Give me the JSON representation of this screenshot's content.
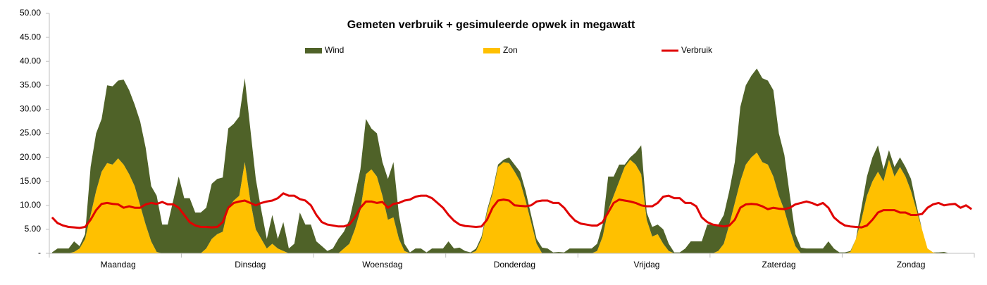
{
  "chart_data": {
    "type": "stacked-area-line",
    "title": "Gemeten verbruik + gesimuleerde opwek in megawatt",
    "categories": [
      null,
      null,
      null,
      null,
      null,
      null,
      null,
      null,
      null,
      null,
      null,
      null,
      "Maandag",
      null,
      null,
      null,
      null,
      null,
      null,
      null,
      null,
      null,
      null,
      null,
      null,
      null,
      null,
      null,
      null,
      null,
      null,
      null,
      null,
      null,
      null,
      null,
      "Dinsdag",
      null,
      null,
      null,
      null,
      null,
      null,
      null,
      null,
      null,
      null,
      null,
      null,
      null,
      null,
      null,
      null,
      null,
      null,
      null,
      null,
      null,
      null,
      null,
      "Woensdag",
      null,
      null,
      null,
      null,
      null,
      null,
      null,
      null,
      null,
      null,
      null,
      null,
      null,
      null,
      null,
      null,
      null,
      null,
      null,
      null,
      null,
      null,
      null,
      "Donderdag",
      null,
      null,
      null,
      null,
      null,
      null,
      null,
      null,
      null,
      null,
      null,
      null,
      null,
      null,
      null,
      null,
      null,
      null,
      null,
      null,
      null,
      null,
      null,
      "Vrijdag",
      null,
      null,
      null,
      null,
      null,
      null,
      null,
      null,
      null,
      null,
      null,
      null,
      null,
      null,
      null,
      null,
      null,
      null,
      null,
      null,
      null,
      null,
      null,
      "Zaterdag",
      null,
      null,
      null,
      null,
      null,
      null,
      null,
      null,
      null,
      null,
      null,
      null,
      null,
      null,
      null,
      null,
      null,
      null,
      null,
      null,
      null,
      null,
      null,
      "Zondag",
      null,
      null,
      null,
      null,
      null,
      null,
      null,
      null,
      null,
      null,
      null
    ],
    "series": [
      {
        "name": "Wind",
        "color": "#4f6228",
        "stack": true,
        "values": [
          0.2,
          1,
          1,
          1,
          2.2,
          0.5,
          1,
          10,
          12,
          11,
          16.2,
          16.3,
          16.2,
          17.7,
          17.5,
          17,
          17.5,
          16,
          11.5,
          11.7,
          6,
          6,
          11,
          16,
          11.5,
          11.5,
          8.5,
          8.5,
          8.5,
          11.5,
          11.5,
          11.3,
          16.5,
          16,
          16.5,
          17.5,
          15,
          10.5,
          6,
          2,
          6,
          2,
          6,
          1,
          2,
          8.5,
          6,
          6,
          2.5,
          1.5,
          0.5,
          1,
          3,
          3.5,
          5,
          7,
          8.5,
          11.5,
          8.5,
          9,
          7,
          8.5,
          11.5,
          5,
          1.5,
          0.2,
          1,
          1,
          0.2,
          1,
          1,
          1,
          2.5,
          1,
          1.2,
          0.5,
          0.2,
          0.5,
          0.5,
          0.5,
          0.5,
          0.5,
          0.5,
          1.2,
          1.5,
          2,
          2,
          1.5,
          1,
          1.2,
          1,
          0.2,
          0.3,
          0.2,
          1,
          1,
          1,
          1,
          1,
          1.5,
          2.5,
          7,
          4,
          3.5,
          0.5,
          0.5,
          2.5,
          6,
          1.5,
          2,
          2,
          3,
          1.5,
          0.2,
          0.2,
          1,
          2.5,
          2.5,
          2.5,
          6,
          6,
          5.5,
          6,
          7,
          8.5,
          15.5,
          16.5,
          17,
          17.5,
          17.5,
          17.5,
          18,
          13,
          11.5,
          7,
          2.5,
          1.2,
          1,
          1,
          1,
          1,
          2.5,
          1,
          0.2,
          0.2,
          0.2,
          0,
          2.5,
          4,
          5,
          5.5,
          2.5,
          2,
          2,
          2,
          2,
          2.5,
          1,
          0,
          0,
          0,
          0.2,
          0.3,
          0,
          0,
          0,
          0,
          0
        ]
      },
      {
        "name": "Zon",
        "color": "#ffc000",
        "stack": true,
        "values": [
          0,
          0,
          0,
          0,
          0.3,
          1,
          3,
          8,
          13,
          17,
          18.8,
          18.5,
          19.8,
          18.5,
          16.5,
          14,
          10,
          6,
          2.5,
          0.3,
          0,
          0,
          0,
          0,
          0,
          0,
          0,
          0,
          1,
          3,
          4,
          4.5,
          9.5,
          11,
          12,
          19,
          11,
          5,
          3,
          1,
          2,
          1,
          0.5,
          0,
          0,
          0,
          0,
          0,
          0,
          0,
          0,
          0,
          0,
          1,
          2,
          5,
          9,
          16.5,
          17.5,
          16,
          12,
          7,
          7.5,
          3,
          0.5,
          0,
          0,
          0,
          0,
          0,
          0,
          0,
          0,
          0,
          0,
          0,
          0,
          0.5,
          3,
          8.5,
          12.5,
          18,
          19,
          18.8,
          17,
          15,
          11,
          6.5,
          2,
          0,
          0,
          0,
          0,
          0,
          0,
          0,
          0,
          0,
          0,
          0.5,
          3.5,
          9,
          12,
          15,
          18,
          19.5,
          18.5,
          16.5,
          7,
          3.5,
          4,
          2,
          0.5,
          0,
          0,
          0,
          0,
          0,
          0,
          0,
          0,
          0.5,
          2,
          6,
          10.5,
          15,
          18.5,
          20,
          21,
          19,
          18.5,
          16,
          12,
          9,
          5,
          1.5,
          0,
          0,
          0,
          0,
          0,
          0,
          0,
          0,
          0,
          0.3,
          3,
          7,
          12,
          15,
          17,
          15,
          19.5,
          16,
          18,
          16,
          13,
          9,
          5,
          1,
          0.2,
          0,
          0,
          0,
          0,
          0,
          0,
          0
        ]
      },
      {
        "name": "Verbruik",
        "color": "#e00000",
        "stack": false,
        "values": [
          7.5,
          6.3,
          5.8,
          5.5,
          5.4,
          5.3,
          5.5,
          7,
          9,
          10.3,
          10.5,
          10.3,
          10.2,
          9.5,
          9.8,
          9.5,
          9.5,
          10.2,
          10.5,
          10.3,
          10.7,
          10.2,
          10.2,
          9.5,
          8,
          6.5,
          5.8,
          5.5,
          5.5,
          5.4,
          5.5,
          6.5,
          9.5,
          10.5,
          10.8,
          11,
          10.5,
          10,
          10.5,
          10.8,
          11,
          11.5,
          12.5,
          12,
          12,
          11.3,
          11,
          10,
          8,
          6.5,
          6,
          5.8,
          5.6,
          5.6,
          6,
          7.5,
          9.5,
          10.8,
          10.8,
          10.5,
          10.7,
          9.5,
          10.3,
          10.5,
          11,
          11.2,
          11.8,
          12,
          12,
          11.5,
          10.5,
          9.5,
          8,
          6.8,
          6,
          5.7,
          5.6,
          5.5,
          5.6,
          7,
          9.5,
          11,
          11.2,
          11,
          10,
          9.9,
          9.8,
          10,
          10.8,
          11,
          11,
          10.5,
          10.5,
          9.5,
          8,
          6.8,
          6.2,
          6,
          5.8,
          5.8,
          6.5,
          8.5,
          10.5,
          11.2,
          11,
          10.8,
          10.5,
          10,
          9.8,
          9.8,
          10.5,
          11.8,
          12,
          11.5,
          11.5,
          10.5,
          10.5,
          9.8,
          7.5,
          6.5,
          6,
          5.8,
          5.6,
          5.8,
          7,
          9.5,
          10.2,
          10.3,
          10.2,
          9.8,
          9.2,
          9.5,
          9.3,
          9.2,
          9.5,
          10.2,
          10.5,
          10.8,
          10.5,
          10,
          10.5,
          9.5,
          7.5,
          6.5,
          5.8,
          5.6,
          5.5,
          5.4,
          5.8,
          7,
          8.5,
          9,
          9,
          9,
          8.5,
          8.5,
          8,
          8,
          8.2,
          9.5,
          10.2,
          10.5,
          10,
          10.2,
          10.3,
          9.5,
          10,
          9.2
        ]
      }
    ],
    "ylim": [
      0,
      50
    ],
    "yticks": [
      {
        "value": 0,
        "label": "-"
      },
      {
        "value": 5,
        "label": "5.00"
      },
      {
        "value": 10,
        "label": "10.00"
      },
      {
        "value": 15,
        "label": "15.00"
      },
      {
        "value": 20,
        "label": "20.00"
      },
      {
        "value": 25,
        "label": "25.00"
      },
      {
        "value": 30,
        "label": "30.00"
      },
      {
        "value": 35,
        "label": "35.00"
      },
      {
        "value": 40,
        "label": "40.00"
      },
      {
        "value": 45,
        "label": "45.00"
      },
      {
        "value": 50,
        "label": "50.00"
      }
    ],
    "legend": "top"
  }
}
